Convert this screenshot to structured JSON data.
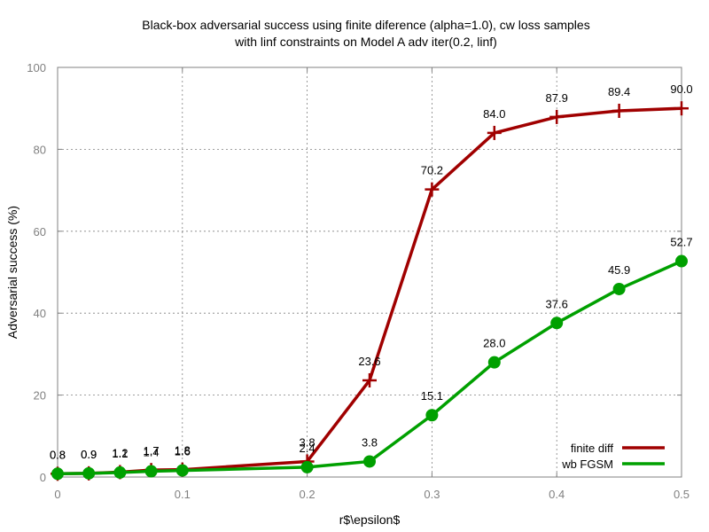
{
  "chart_data": {
    "type": "line",
    "title_lines": [
      "Black-box adversarial success using finite diference (alpha=1.0), cw loss samples",
      "with linf constraints on Model A adv iter(0.2, linf)"
    ],
    "xlabel": "r$\\epsilon$",
    "ylabel": "Adversarial success (%)",
    "xlim": [
      0,
      0.5
    ],
    "ylim": [
      0,
      100
    ],
    "x_ticks": [
      "0",
      "0.1",
      "0.2",
      "0.3",
      "0.4",
      "0.5"
    ],
    "x_tick_values": [
      0,
      0.1,
      0.2,
      0.3,
      0.4,
      0.5
    ],
    "y_ticks": [
      "0",
      "20",
      "40",
      "60",
      "80",
      "100"
    ],
    "y_tick_values": [
      0,
      20,
      40,
      60,
      80,
      100
    ],
    "grid": true,
    "legend_position": "bottom-right",
    "series": [
      {
        "name": "finite diff",
        "color": "#a00000",
        "marker": "plus",
        "x": [
          0,
          0.025,
          0.05,
          0.075,
          0.1,
          0.2,
          0.25,
          0.3,
          0.35,
          0.4,
          0.45,
          0.5
        ],
        "values": [
          0.8,
          0.9,
          1.2,
          1.7,
          1.8,
          3.8,
          23.6,
          70.2,
          84.0,
          87.9,
          89.4,
          90.0
        ],
        "labels": [
          "0.8",
          "0.9",
          "1.2",
          "1.7",
          "1.8",
          "3.8",
          "23.6",
          "70.2",
          "84.0",
          "87.9",
          "89.4",
          "90.0"
        ]
      },
      {
        "name": "wb FGSM",
        "color": "#00a000",
        "marker": "circle",
        "x": [
          0,
          0.025,
          0.05,
          0.075,
          0.1,
          0.2,
          0.25,
          0.3,
          0.35,
          0.4,
          0.45,
          0.5
        ],
        "values": [
          0.8,
          0.9,
          1.1,
          1.4,
          1.6,
          2.4,
          3.8,
          15.1,
          28.0,
          37.6,
          45.9,
          52.7
        ],
        "labels": [
          "0.8",
          "0.9",
          "1.1",
          "1.4",
          "1.6",
          "2.4",
          "3.8",
          "15.1",
          "28.0",
          "37.6",
          "45.9",
          "52.7"
        ]
      }
    ]
  }
}
